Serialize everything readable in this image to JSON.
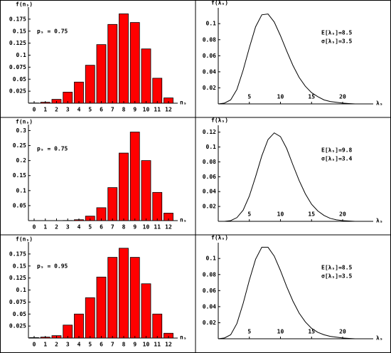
{
  "chart_data": [
    {
      "type": "bar",
      "y_label": "f(nₛ)",
      "x_label": "nₛ",
      "annotations": [
        "pₛ = 0.75"
      ],
      "color": "#ff0000",
      "categories": [
        "0",
        "1",
        "2",
        "3",
        "4",
        "5",
        "6",
        "7",
        "8",
        "9",
        "10",
        "11",
        "12"
      ],
      "values": [
        0.0005,
        0.002,
        0.008,
        0.023,
        0.044,
        0.079,
        0.122,
        0.164,
        0.186,
        0.168,
        0.113,
        0.052,
        0.011
      ],
      "ylim": [
        0,
        0.2
      ],
      "yticks": [
        0.025,
        0.05,
        0.075,
        0.1,
        0.125,
        0.15,
        0.175
      ]
    },
    {
      "type": "line",
      "y_label": "f(λₛ)",
      "x_label": "λₛ",
      "annotations": [
        "E[λₛ]=8.5",
        "σ[λₛ]=3.5"
      ],
      "color": "#000000",
      "x": [
        0,
        1,
        2,
        3,
        4,
        5,
        6,
        7,
        8,
        9,
        10,
        11,
        12,
        13,
        14,
        15,
        16,
        17,
        18,
        19,
        20,
        21,
        22,
        23,
        24
      ],
      "values": [
        0,
        0.001,
        0.005,
        0.018,
        0.042,
        0.07,
        0.096,
        0.111,
        0.112,
        0.102,
        0.085,
        0.066,
        0.048,
        0.033,
        0.022,
        0.014,
        0.009,
        0.005,
        0.003,
        0.002,
        0.001,
        0.0005,
        0,
        0,
        0
      ],
      "xlim": [
        0,
        24
      ],
      "xticks": [
        5,
        10,
        15,
        20
      ],
      "ylim": [
        0,
        0.125
      ],
      "yticks": [
        0.02,
        0.04,
        0.06,
        0.08,
        0.1
      ]
    },
    {
      "type": "bar",
      "y_label": "f(nₛ)",
      "x_label": "nₛ",
      "annotations": [
        "pₛ = 0.75"
      ],
      "color": "#ff0000",
      "categories": [
        "0",
        "1",
        "2",
        "3",
        "4",
        "5",
        "6",
        "7",
        "8",
        "9",
        "10",
        "11",
        "12"
      ],
      "values": [
        0,
        0,
        0,
        0.0005,
        0.003,
        0.015,
        0.043,
        0.11,
        0.225,
        0.295,
        0.2,
        0.094,
        0.025
      ],
      "ylim": [
        0,
        0.32
      ],
      "yticks": [
        0.05,
        0.1,
        0.15,
        0.2,
        0.25,
        0.3
      ]
    },
    {
      "type": "line",
      "y_label": "f(λₛ)",
      "x_label": "λₛ",
      "annotations": [
        "E[λₛ]=9.8",
        "σ[λₛ]=3.4"
      ],
      "color": "#000000",
      "x": [
        0,
        1,
        2,
        3,
        4,
        5,
        6,
        7,
        8,
        9,
        10,
        11,
        12,
        13,
        14,
        15,
        16,
        17,
        18,
        19,
        20,
        21,
        22,
        23,
        24
      ],
      "values": [
        0,
        0,
        0.001,
        0.005,
        0.015,
        0.034,
        0.06,
        0.088,
        0.11,
        0.119,
        0.114,
        0.098,
        0.076,
        0.055,
        0.037,
        0.023,
        0.014,
        0.008,
        0.004,
        0.002,
        0.001,
        0.0005,
        0,
        0,
        0
      ],
      "xlim": [
        0,
        24
      ],
      "xticks": [
        5,
        10,
        15,
        20
      ],
      "ylim": [
        0,
        0.135
      ],
      "yticks": [
        0.02,
        0.04,
        0.06,
        0.08,
        0.1,
        0.12
      ]
    },
    {
      "type": "bar",
      "y_label": "f(nₛ)",
      "x_label": "nₛ",
      "annotations": [
        "pₛ = 0.95"
      ],
      "color": "#ff0000",
      "categories": [
        "0",
        "1",
        "2",
        "3",
        "4",
        "5",
        "6",
        "7",
        "8",
        "9",
        "10",
        "11",
        "12"
      ],
      "values": [
        0.001,
        0.002,
        0.005,
        0.027,
        0.05,
        0.084,
        0.127,
        0.168,
        0.187,
        0.168,
        0.113,
        0.05,
        0.01
      ],
      "ylim": [
        0,
        0.2
      ],
      "yticks": [
        0.025,
        0.05,
        0.075,
        0.1,
        0.125,
        0.15,
        0.175
      ]
    },
    {
      "type": "line",
      "y_label": "f(λₛ)",
      "x_label": "λₛ",
      "annotations": [
        "E[λₛ]=8.5",
        "σ[λₛ]=3.5"
      ],
      "color": "#000000",
      "x": [
        0,
        1,
        2,
        3,
        4,
        5,
        6,
        7,
        8,
        9,
        10,
        11,
        12,
        13,
        14,
        15,
        16,
        17,
        18,
        19,
        20,
        21,
        22,
        23,
        24
      ],
      "values": [
        0,
        0.001,
        0.005,
        0.019,
        0.044,
        0.073,
        0.099,
        0.114,
        0.114,
        0.103,
        0.085,
        0.065,
        0.047,
        0.032,
        0.021,
        0.013,
        0.008,
        0.005,
        0.003,
        0.002,
        0.001,
        0.0005,
        0,
        0,
        0
      ],
      "xlim": [
        0,
        24
      ],
      "xticks": [
        5,
        10,
        15,
        20
      ],
      "ylim": [
        0,
        0.125
      ],
      "yticks": [
        0.02,
        0.04,
        0.06,
        0.08,
        0.1
      ]
    }
  ]
}
